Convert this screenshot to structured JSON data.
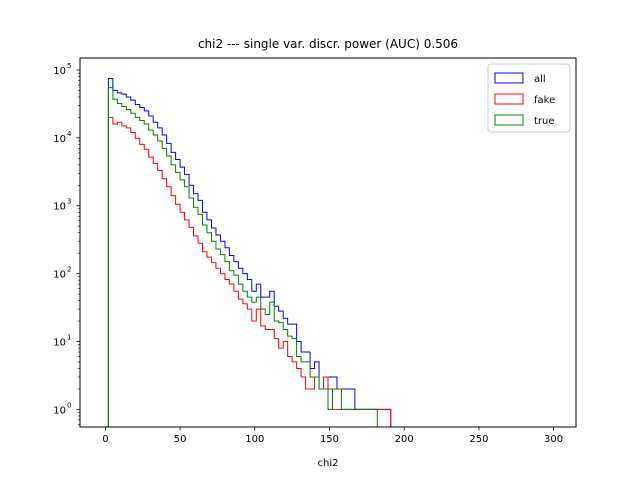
{
  "chart_data": {
    "type": "histogram-step",
    "title": "chi2 --- single var. discr. power (AUC) 0.506",
    "xlabel": "chi2",
    "ylabel": "",
    "yscale": "log",
    "xlim": [
      -17,
      315
    ],
    "ylim": [
      0.55,
      150000
    ],
    "xticks": [
      0,
      50,
      100,
      150,
      200,
      250,
      300
    ],
    "xtick_labels": [
      "0",
      "50",
      "100",
      "150",
      "200",
      "250",
      "300"
    ],
    "yticks": [
      1,
      10,
      100,
      1000,
      10000,
      100000
    ],
    "ytick_labels": [
      "10",
      "10",
      "10",
      "10",
      "10",
      "10"
    ],
    "ytick_exponents": [
      "0",
      "1",
      "2",
      "3",
      "4",
      "5"
    ],
    "bin_start": 2,
    "bin_width": 3,
    "legend": {
      "position": "top-right",
      "entries": [
        "all",
        "fake",
        "true"
      ]
    },
    "series": [
      {
        "name": "all",
        "color": "#0000ff",
        "values": [
          75000,
          50000,
          46000,
          44000,
          40000,
          36000,
          31000,
          28000,
          25000,
          21000,
          17000,
          14000,
          11000,
          8300,
          6100,
          4800,
          3700,
          2900,
          2000,
          1500,
          1200,
          800,
          620,
          470,
          370,
          300,
          240,
          185,
          150,
          120,
          100,
          82,
          55,
          70,
          45,
          45,
          55,
          33,
          28,
          22,
          18,
          18,
          10,
          7,
          7,
          4,
          5,
          2,
          3,
          3,
          3,
          2,
          2,
          2,
          2,
          1,
          1,
          1,
          1,
          1,
          1,
          1,
          1,
          0,
          0,
          0,
          0,
          0,
          0,
          0,
          0,
          0,
          0,
          0,
          0,
          0,
          0,
          0,
          0,
          0,
          0,
          0,
          0,
          0,
          0,
          0,
          0,
          0,
          0,
          0,
          0,
          0,
          0,
          0,
          0,
          0,
          0,
          0,
          0,
          0
        ]
      },
      {
        "name": "fake",
        "color": "#ff0000",
        "values": [
          20000,
          16000,
          17000,
          15000,
          14000,
          12000,
          9800,
          8000,
          6800,
          5200,
          4200,
          3300,
          2500,
          1900,
          1400,
          1050,
          800,
          620,
          480,
          360,
          280,
          210,
          175,
          145,
          120,
          100,
          82,
          70,
          55,
          42,
          36,
          30,
          20,
          30,
          17,
          15,
          15,
          11,
          8,
          10,
          6,
          5,
          4,
          3,
          2,
          2,
          3,
          2,
          3,
          2,
          1,
          1,
          1,
          1,
          1,
          1,
          1,
          1,
          1,
          1,
          1,
          1,
          1,
          0,
          0,
          0,
          0,
          0,
          0,
          0,
          0,
          0,
          0,
          0,
          0,
          0,
          0,
          0,
          0,
          0,
          0,
          0,
          0,
          0,
          0,
          0,
          0,
          0,
          0,
          0,
          0,
          0,
          0,
          0,
          0,
          0,
          0,
          0,
          0,
          0
        ]
      },
      {
        "name": "true",
        "color": "#008000",
        "values": [
          55000,
          37000,
          32000,
          29000,
          26000,
          23000,
          20000,
          18000,
          16000,
          13000,
          11000,
          9000,
          7000,
          5400,
          4000,
          3100,
          2400,
          1900,
          1300,
          950,
          750,
          520,
          400,
          300,
          230,
          190,
          150,
          110,
          95,
          70,
          55,
          45,
          38,
          45,
          30,
          25,
          38,
          20,
          19,
          15,
          12,
          11,
          6,
          5,
          5,
          3,
          3,
          2,
          2,
          1,
          2,
          2,
          1,
          1,
          1,
          1,
          1,
          1,
          1,
          1,
          0,
          0,
          0,
          0,
          0,
          0,
          0,
          0,
          0,
          0,
          0,
          0,
          0,
          0,
          0,
          0,
          0,
          0,
          0,
          0,
          0,
          0,
          0,
          0,
          0,
          0,
          0,
          0,
          0,
          0,
          0,
          0,
          0,
          0,
          0,
          0,
          0,
          0,
          0,
          0
        ]
      }
    ]
  }
}
